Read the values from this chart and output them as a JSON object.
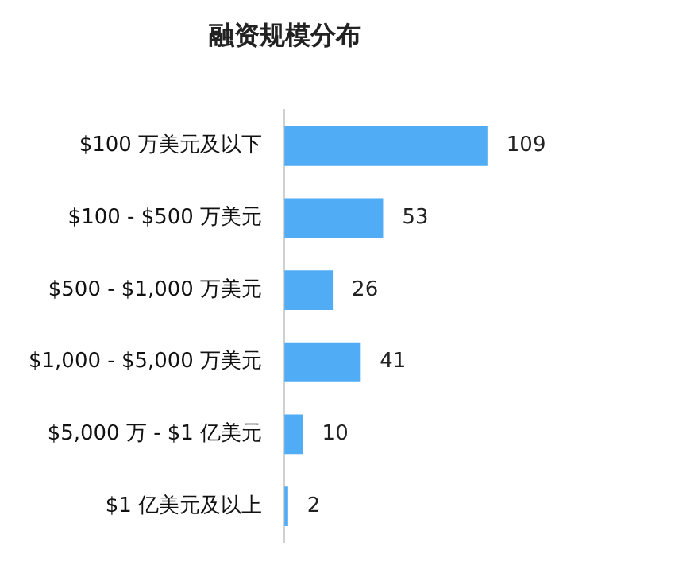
{
  "chart_data": {
    "type": "bar",
    "orientation": "horizontal",
    "title": "融资规模分布",
    "categories": [
      "$100 万美元及以下",
      "$100 - $500 万美元",
      "$500 - $1,000 万美元",
      "$1,000 - $5,000 万美元",
      "$5,000 万 - $1 亿美元",
      "$1 亿美元及以上"
    ],
    "values": [
      109,
      53,
      26,
      41,
      10,
      2
    ],
    "color": "#4facf5",
    "data_labels": true
  }
}
